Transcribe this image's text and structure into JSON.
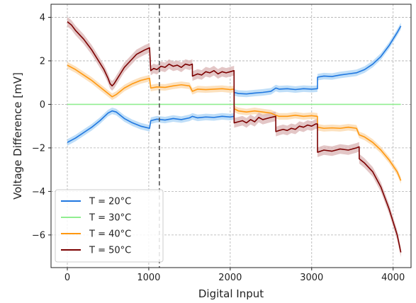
{
  "chart_data": {
    "type": "line",
    "title": "",
    "xlabel": "Digital Input",
    "ylabel": "Voltage Difference [mV]",
    "xlim": [
      -200,
      4220
    ],
    "ylim": [
      -7.5,
      4.6
    ],
    "xticks": [
      0,
      1000,
      2000,
      3000,
      4000
    ],
    "xtick_labels": [
      "0",
      "1000",
      "2000",
      "3000",
      "4000"
    ],
    "yticks": [
      -6,
      -4,
      -2,
      0,
      2,
      4
    ],
    "ytick_labels": [
      "−6",
      "−4",
      "−2",
      "0",
      "2",
      "4"
    ],
    "grid": true,
    "legend_position": "lower-left",
    "vline": {
      "x": 1130,
      "style": "dashed",
      "color": "#555555"
    },
    "series": [
      {
        "name": "T = 20°C",
        "color": "#1f77e0",
        "band_color": "#a9d3f5",
        "band": 0.15,
        "x": [
          0,
          100,
          200,
          300,
          400,
          500,
          550,
          600,
          700,
          800,
          900,
          1010,
          1024,
          1100,
          1200,
          1300,
          1400,
          1500,
          1536,
          1600,
          1700,
          1800,
          1900,
          2000,
          2047,
          2048,
          2100,
          2200,
          2300,
          2400,
          2500,
          2560,
          2600,
          2700,
          2800,
          2900,
          3000,
          3071,
          3072,
          3150,
          3250,
          3350,
          3450,
          3550,
          3584,
          3650,
          3750,
          3850,
          3950,
          4050,
          4095
        ],
        "y": [
          -1.75,
          -1.55,
          -1.3,
          -1.05,
          -0.75,
          -0.4,
          -0.3,
          -0.35,
          -0.65,
          -0.85,
          -1.0,
          -1.1,
          -0.75,
          -0.68,
          -0.72,
          -0.65,
          -0.7,
          -0.62,
          -0.55,
          -0.62,
          -0.58,
          -0.6,
          -0.55,
          -0.58,
          -0.55,
          0.55,
          0.5,
          0.48,
          0.52,
          0.55,
          0.6,
          0.75,
          0.7,
          0.72,
          0.68,
          0.72,
          0.7,
          0.72,
          1.25,
          1.3,
          1.28,
          1.35,
          1.4,
          1.45,
          1.5,
          1.6,
          1.85,
          2.2,
          2.7,
          3.3,
          3.6
        ]
      },
      {
        "name": "T = 30°C",
        "color": "#90ee90",
        "band_color": "#d8f7d8",
        "band": 0.0,
        "x": [
          0,
          4095
        ],
        "y": [
          0,
          0
        ]
      },
      {
        "name": "T = 40°C",
        "color": "#ff9810",
        "band_color": "#fbd7a8",
        "band": 0.15,
        "x": [
          0,
          100,
          200,
          300,
          400,
          500,
          550,
          600,
          700,
          800,
          900,
          1010,
          1024,
          1100,
          1200,
          1300,
          1400,
          1500,
          1536,
          1600,
          1700,
          1800,
          1900,
          2000,
          2047,
          2048,
          2100,
          2200,
          2300,
          2400,
          2500,
          2560,
          2600,
          2700,
          2800,
          2900,
          3000,
          3071,
          3072,
          3150,
          3250,
          3350,
          3450,
          3550,
          3584,
          3650,
          3750,
          3850,
          3950,
          4050,
          4095
        ],
        "y": [
          1.8,
          1.6,
          1.35,
          1.1,
          0.8,
          0.5,
          0.35,
          0.45,
          0.75,
          0.95,
          1.1,
          1.2,
          0.75,
          0.8,
          0.78,
          0.85,
          0.9,
          0.85,
          0.6,
          0.7,
          0.68,
          0.7,
          0.72,
          0.68,
          0.7,
          -0.2,
          -0.3,
          -0.35,
          -0.3,
          -0.35,
          -0.4,
          -0.5,
          -0.55,
          -0.55,
          -0.5,
          -0.55,
          -0.52,
          -0.55,
          -1.05,
          -1.1,
          -1.08,
          -1.1,
          -1.05,
          -1.1,
          -1.4,
          -1.5,
          -1.75,
          -2.1,
          -2.55,
          -3.1,
          -3.5
        ]
      },
      {
        "name": "T = 50°C",
        "color": "#7b0000",
        "band_color": "#d9b3b3",
        "band": 0.22,
        "x": [
          0,
          50,
          100,
          150,
          200,
          250,
          300,
          350,
          400,
          450,
          500,
          525,
          550,
          575,
          600,
          650,
          700,
          750,
          800,
          850,
          900,
          950,
          1010,
          1024,
          1060,
          1100,
          1150,
          1200,
          1250,
          1300,
          1350,
          1400,
          1450,
          1500,
          1535,
          1536,
          1600,
          1650,
          1700,
          1750,
          1800,
          1850,
          1900,
          1950,
          2000,
          2047,
          2048,
          2100,
          2150,
          2200,
          2250,
          2300,
          2350,
          2400,
          2450,
          2500,
          2559,
          2560,
          2600,
          2650,
          2700,
          2750,
          2800,
          2850,
          2900,
          2950,
          3000,
          3050,
          3071,
          3072,
          3150,
          3250,
          3350,
          3450,
          3550,
          3583,
          3584,
          3650,
          3750,
          3850,
          3950,
          4050,
          4095
        ],
        "y": [
          3.8,
          3.65,
          3.4,
          3.2,
          3.0,
          2.75,
          2.5,
          2.2,
          1.9,
          1.6,
          1.2,
          0.95,
          0.85,
          0.95,
          1.1,
          1.4,
          1.7,
          1.9,
          2.1,
          2.3,
          2.4,
          2.5,
          2.6,
          1.55,
          1.65,
          1.6,
          1.75,
          1.7,
          1.85,
          1.75,
          1.8,
          1.7,
          1.85,
          1.8,
          1.85,
          1.3,
          1.4,
          1.35,
          1.5,
          1.45,
          1.55,
          1.4,
          1.5,
          1.45,
          1.5,
          1.55,
          -0.85,
          -0.8,
          -0.75,
          -0.85,
          -0.7,
          -0.8,
          -0.6,
          -0.7,
          -0.65,
          -0.6,
          -0.55,
          -1.25,
          -1.2,
          -1.15,
          -1.2,
          -1.1,
          -1.15,
          -1.0,
          -1.05,
          -0.95,
          -1.0,
          -0.9,
          -0.9,
          -2.2,
          -2.1,
          -2.15,
          -2.05,
          -2.1,
          -2.0,
          -1.95,
          -2.5,
          -2.7,
          -3.1,
          -3.8,
          -4.8,
          -6.0,
          -6.8
        ]
      }
    ]
  }
}
